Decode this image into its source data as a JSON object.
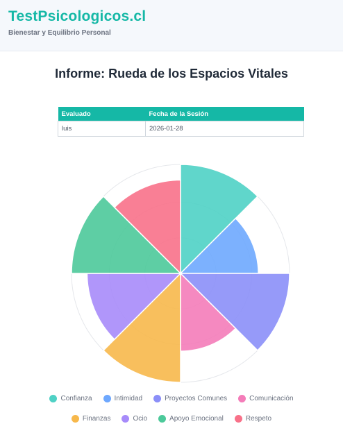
{
  "header": {
    "brand": "TestPsicologicos.cl",
    "tagline": "Bienestar y Equilibrio Personal"
  },
  "report": {
    "title": "Informe: Rueda de los Espacios Vitales"
  },
  "info_table": {
    "headers": [
      "Evaluado",
      "Fecha de la Sesión"
    ],
    "values": [
      "luis",
      "2026-01-28"
    ]
  },
  "chart_data": {
    "type": "polarArea",
    "categories": [
      "Confianza",
      "Intimidad",
      "Proyectos Comunes",
      "Comunicación",
      "Finanzas",
      "Ocio",
      "Apoyo Emocional",
      "Respeto"
    ],
    "values": [
      7,
      5,
      7,
      5,
      7,
      6,
      7,
      6
    ],
    "rmax": 7,
    "colors": [
      "#4fd1c5",
      "#6ea8fe",
      "#8b8ff8",
      "#f47cb9",
      "#f7b84b",
      "#a78bfa",
      "#4cc99a",
      "#f87189"
    ],
    "legend": [
      "Confianza",
      "Intimidad",
      "Proyectos Comunes",
      "Comunicación",
      "Finanzas",
      "Ocio",
      "Apoyo Emocional",
      "Respeto"
    ],
    "legend_rows": [
      [
        "Confianza",
        "Intimidad",
        "Proyectos Comunes",
        "Comunicación"
      ],
      [
        "Finanzas",
        "Ocio",
        "Apoyo Emocional",
        "Respeto"
      ]
    ],
    "legend_position": "bottom",
    "grid": true
  }
}
